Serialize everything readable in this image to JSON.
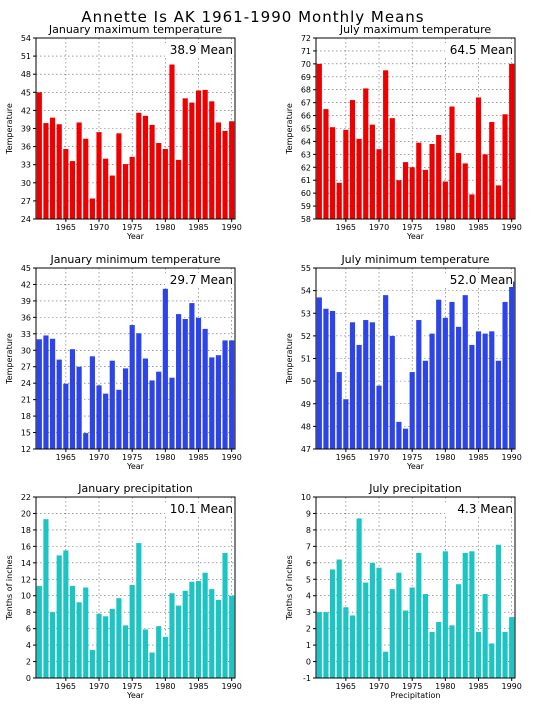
{
  "title": "Annette Is AK   1961-1990 Monthly Means",
  "colors": {
    "red": "#ee0000",
    "blue": "#2c44e8",
    "cyan": "#1cc4c4"
  },
  "chart_data": [
    {
      "type": "bar",
      "title": "January maximum temperature",
      "mean_label": "38.9  Mean",
      "xlabel": "Year",
      "ylabel": "Temperature",
      "color": "red",
      "xlim": [
        1961,
        1990
      ],
      "ylim": [
        24,
        54
      ],
      "yticks": [
        24,
        27,
        30,
        33,
        36,
        39,
        42,
        45,
        48,
        51,
        54
      ],
      "xticks": [
        1965,
        1970,
        1975,
        1980,
        1985,
        1990
      ],
      "x": [
        1961,
        1962,
        1963,
        1964,
        1965,
        1966,
        1967,
        1968,
        1969,
        1970,
        1971,
        1972,
        1973,
        1974,
        1975,
        1976,
        1977,
        1978,
        1979,
        1980,
        1981,
        1982,
        1983,
        1984,
        1985,
        1986,
        1987,
        1988,
        1989,
        1990
      ],
      "values": [
        45.0,
        39.9,
        40.8,
        39.7,
        35.6,
        33.6,
        40.0,
        37.3,
        27.4,
        38.4,
        34.0,
        31.2,
        38.2,
        33.1,
        34.3,
        41.6,
        41.1,
        39.6,
        36.6,
        35.6,
        49.6,
        33.8,
        44.0,
        43.3,
        45.3,
        45.4,
        43.5,
        40.0,
        38.6,
        40.2
      ],
      "grid": true
    },
    {
      "type": "bar",
      "title": "July maximum temperature",
      "mean_label": "64.5  Mean",
      "xlabel": "Year",
      "ylabel": "Temperature",
      "color": "red",
      "xlim": [
        1961,
        1990
      ],
      "ylim": [
        58,
        72
      ],
      "yticks": [
        58,
        59,
        60,
        61,
        62,
        63,
        64,
        65,
        66,
        67,
        68,
        69,
        70,
        71,
        72
      ],
      "xticks": [
        1965,
        1970,
        1975,
        1980,
        1985,
        1990
      ],
      "x": [
        1961,
        1962,
        1963,
        1964,
        1965,
        1966,
        1967,
        1968,
        1969,
        1970,
        1971,
        1972,
        1973,
        1974,
        1975,
        1976,
        1977,
        1978,
        1979,
        1980,
        1981,
        1982,
        1983,
        1984,
        1985,
        1986,
        1987,
        1988,
        1989,
        1990
      ],
      "values": [
        70.0,
        66.5,
        65.1,
        60.8,
        64.9,
        67.2,
        64.2,
        68.1,
        65.3,
        63.4,
        69.5,
        65.8,
        61.0,
        62.4,
        62.0,
        63.9,
        61.8,
        63.8,
        64.5,
        60.9,
        66.7,
        63.1,
        62.3,
        59.9,
        67.4,
        63.0,
        65.5,
        60.6,
        66.1,
        70.0
      ],
      "grid": true
    },
    {
      "type": "bar",
      "title": "January minimum temperature",
      "mean_label": "29.7  Mean",
      "xlabel": "Year",
      "ylabel": "Temperature",
      "color": "blue",
      "xlim": [
        1961,
        1990
      ],
      "ylim": [
        12,
        45
      ],
      "yticks": [
        12,
        15,
        18,
        21,
        24,
        27,
        30,
        33,
        36,
        39,
        42,
        45
      ],
      "xticks": [
        1965,
        1970,
        1975,
        1980,
        1985,
        1990
      ],
      "x": [
        1961,
        1962,
        1963,
        1964,
        1965,
        1966,
        1967,
        1968,
        1969,
        1970,
        1971,
        1972,
        1973,
        1974,
        1975,
        1976,
        1977,
        1978,
        1979,
        1980,
        1981,
        1982,
        1983,
        1984,
        1985,
        1986,
        1987,
        1988,
        1989,
        1990
      ],
      "values": [
        32.0,
        32.7,
        32.1,
        28.3,
        23.9,
        30.2,
        27.0,
        14.9,
        28.9,
        23.6,
        22.1,
        28.1,
        22.8,
        26.7,
        34.6,
        33.1,
        28.5,
        24.5,
        26.1,
        41.2,
        25.0,
        36.6,
        35.7,
        38.6,
        35.9,
        33.9,
        28.7,
        29.1,
        31.8,
        31.8
      ],
      "grid": true
    },
    {
      "type": "bar",
      "title": "July minimum temperature",
      "mean_label": "52.0  Mean",
      "xlabel": "Year",
      "ylabel": "Temperature",
      "color": "blue",
      "xlim": [
        1961,
        1990
      ],
      "ylim": [
        47,
        55
      ],
      "yticks": [
        47,
        48,
        49,
        50,
        51,
        52,
        53,
        54,
        55
      ],
      "xticks": [
        1965,
        1970,
        1975,
        1980,
        1985,
        1990
      ],
      "x": [
        1961,
        1962,
        1963,
        1964,
        1965,
        1966,
        1967,
        1968,
        1969,
        1970,
        1971,
        1972,
        1973,
        1974,
        1975,
        1976,
        1977,
        1978,
        1979,
        1980,
        1981,
        1982,
        1983,
        1984,
        1985,
        1986,
        1987,
        1988,
        1989,
        1990
      ],
      "values": [
        53.7,
        53.2,
        53.1,
        50.4,
        49.2,
        52.6,
        51.6,
        52.7,
        52.6,
        49.8,
        53.8,
        52.0,
        48.2,
        47.9,
        50.4,
        52.7,
        50.9,
        52.1,
        53.6,
        52.8,
        53.5,
        52.4,
        53.8,
        51.6,
        52.2,
        52.1,
        52.2,
        50.9,
        53.5,
        54.4
      ],
      "grid": true
    },
    {
      "type": "bar",
      "title": "January precipitation",
      "mean_label": "10.1  Mean",
      "xlabel": "Year",
      "ylabel": "Tenths of inches",
      "color": "cyan",
      "xlim": [
        1961,
        1990
      ],
      "ylim": [
        0,
        22
      ],
      "yticks": [
        0,
        2,
        4,
        6,
        8,
        10,
        12,
        14,
        16,
        18,
        20,
        22
      ],
      "xticks": [
        1965,
        1970,
        1975,
        1980,
        1985,
        1990
      ],
      "x": [
        1961,
        1962,
        1963,
        1964,
        1965,
        1966,
        1967,
        1968,
        1969,
        1970,
        1971,
        1972,
        1973,
        1974,
        1975,
        1976,
        1977,
        1978,
        1979,
        1980,
        1981,
        1982,
        1983,
        1984,
        1985,
        1986,
        1987,
        1988,
        1989,
        1990
      ],
      "values": [
        11.2,
        19.3,
        8.0,
        14.9,
        15.5,
        11.2,
        9.2,
        11.0,
        3.4,
        7.8,
        7.5,
        8.4,
        9.7,
        6.4,
        11.3,
        16.4,
        5.9,
        3.1,
        6.3,
        5.0,
        10.3,
        8.8,
        10.6,
        11.7,
        11.8,
        12.8,
        10.8,
        9.5,
        15.2,
        10.0
      ],
      "grid": true
    },
    {
      "type": "bar",
      "title": "July precipitation",
      "mean_label": "4.3  Mean",
      "xlabel": "Precipitation",
      "ylabel": "Tenths of inches",
      "color": "cyan",
      "xlim": [
        1961,
        1990
      ],
      "ylim": [
        -1,
        10
      ],
      "yticks": [
        -1,
        0,
        1,
        2,
        3,
        4,
        5,
        6,
        7,
        8,
        9,
        10
      ],
      "xticks": [
        1965,
        1970,
        1975,
        1980,
        1985,
        1990
      ],
      "x": [
        1961,
        1962,
        1963,
        1964,
        1965,
        1966,
        1967,
        1968,
        1969,
        1970,
        1971,
        1972,
        1973,
        1974,
        1975,
        1976,
        1977,
        1978,
        1979,
        1980,
        1981,
        1982,
        1983,
        1984,
        1985,
        1986,
        1987,
        1988,
        1989,
        1990
      ],
      "values": [
        3.0,
        3.0,
        5.6,
        6.2,
        3.3,
        2.8,
        8.7,
        4.8,
        6.0,
        5.7,
        0.6,
        4.4,
        5.4,
        3.1,
        4.5,
        6.6,
        4.1,
        1.8,
        2.4,
        6.7,
        2.2,
        4.7,
        6.6,
        6.7,
        1.8,
        4.1,
        1.1,
        7.1,
        1.8,
        2.7
      ],
      "grid": true
    }
  ]
}
